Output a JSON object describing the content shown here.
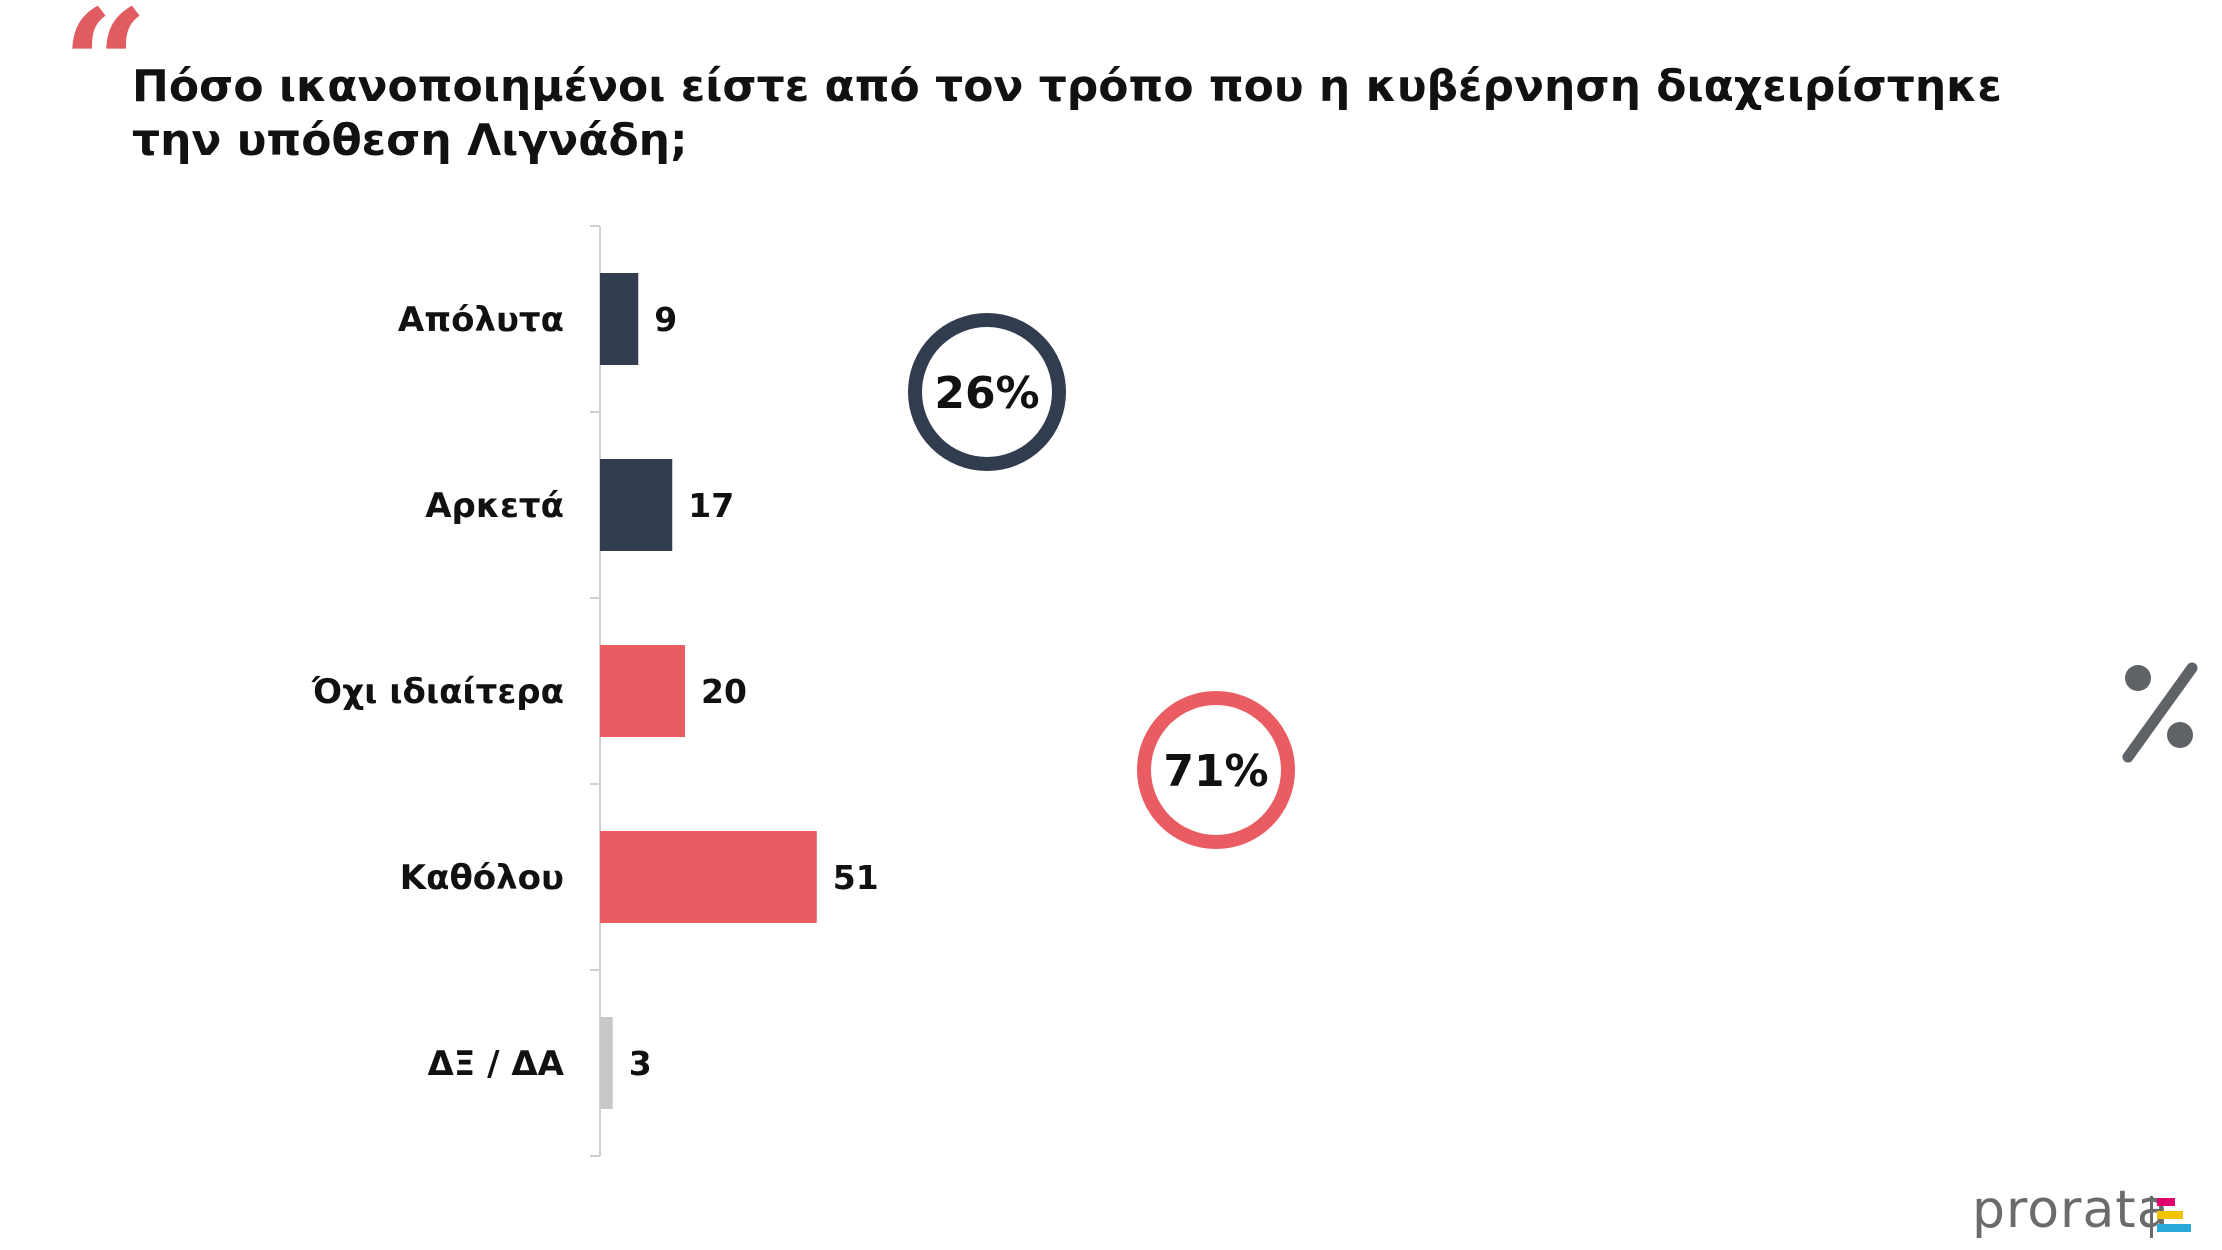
{
  "header": {
    "quote_glyph": "“",
    "title": "Πόσο ικανοποιημένοι είστε από τον τρόπο που η κυβέρνηση διαχειρίστηκε την υπόθεση Λιγνάδη;"
  },
  "chart_data": {
    "type": "bar",
    "orientation": "horizontal",
    "categories": [
      "Απόλυτα",
      "Αρκετά",
      "Όχι ιδιαίτερα",
      "Καθόλου",
      "ΔΞ / ΔΑ"
    ],
    "values": [
      9,
      17,
      20,
      51,
      3
    ],
    "bar_colors": [
      "#323c4f",
      "#323c4f",
      "#e85c62",
      "#e85c62",
      "#c8c8c8"
    ],
    "xlim": [
      0,
      100
    ],
    "grid": false,
    "groups": [
      {
        "label": "26%",
        "color": "#323c4f",
        "categories": [
          "Απόλυτα",
          "Αρκετά"
        ]
      },
      {
        "label": "71%",
        "color": "#e85c62",
        "categories": [
          "Όχι ιδιαίτερα",
          "Καθόλου"
        ]
      }
    ],
    "unit_symbol": "%"
  },
  "branding": {
    "logo_text": "prorata",
    "logo_colors": [
      "#e0006e",
      "#f4c300",
      "#2aa8d9"
    ]
  }
}
